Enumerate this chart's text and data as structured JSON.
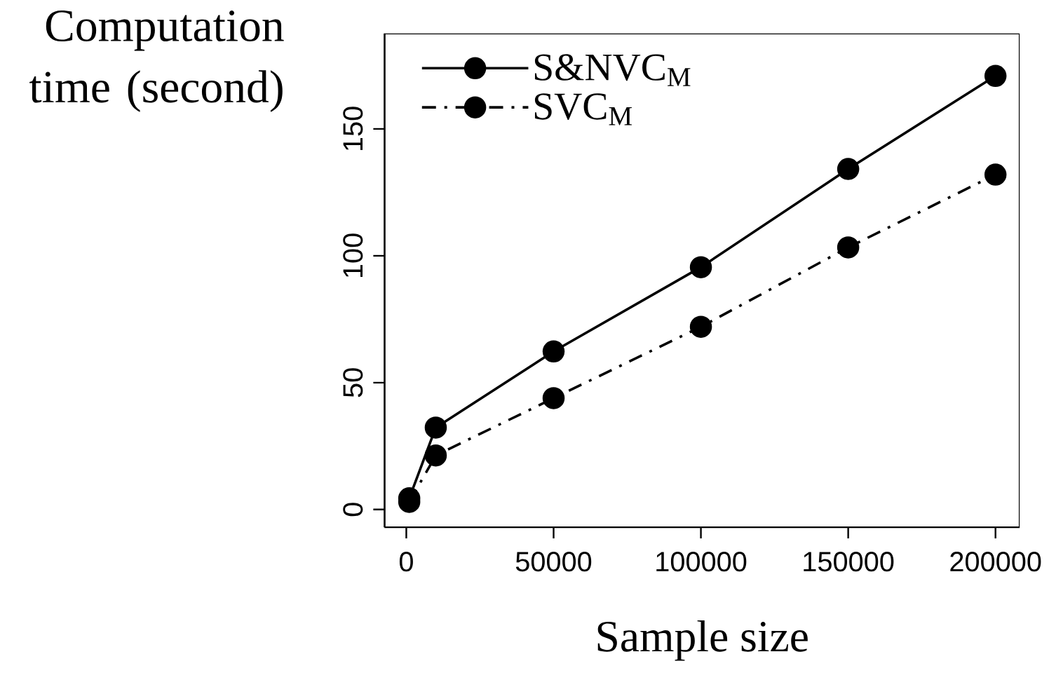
{
  "chart_data": {
    "type": "line",
    "xlabel": "Sample size",
    "ylabel": "Computation time (second)",
    "x": [
      1000,
      10000,
      50000,
      100000,
      150000,
      200000
    ],
    "series": [
      {
        "name": "S&NVC$_{M}$",
        "color": "#000000",
        "line_style": "solid",
        "values": [
          4.4,
          32.3,
          62.3,
          95.5,
          134.2,
          170.9
        ]
      },
      {
        "name": "SVC$_{M}$",
        "color": "#000000",
        "line_style": "dashed",
        "values": [
          3,
          21.3,
          43.9,
          72,
          103.3,
          132
        ]
      }
    ],
    "xlim": [
      -7400,
      208200
    ],
    "ylim": [
      -7,
      187.6
    ],
    "xticks": [
      0,
      50000,
      100000,
      150000,
      200000
    ],
    "yticks": [
      0,
      50,
      100,
      150
    ],
    "legend": "top left",
    "marker": "circle",
    "grid": false
  }
}
